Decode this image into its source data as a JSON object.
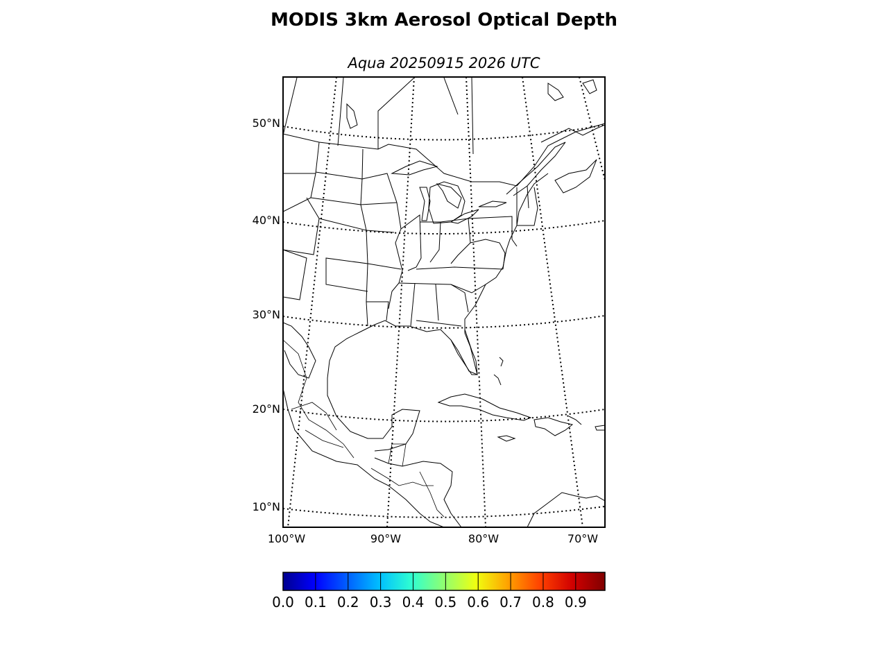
{
  "title": "MODIS 3km Aerosol Optical Depth",
  "subtitle": "Aqua 20250915 2026 UTC",
  "lat_labels": [
    {
      "text": "50°N",
      "lat": 50
    },
    {
      "text": "40°N",
      "lat": 40
    },
    {
      "text": "30°N",
      "lat": 30
    },
    {
      "text": "20°N",
      "lat": 20
    },
    {
      "text": "10°N",
      "lat": 10
    }
  ],
  "lon_labels": [
    {
      "text": "100°W",
      "lon": -100
    },
    {
      "text": "90°W",
      "lon": -90
    },
    {
      "text": "80°W",
      "lon": -80
    },
    {
      "text": "70°W",
      "lon": -70
    }
  ],
  "colorbar": {
    "colormap": "jet",
    "range": [
      0.0,
      0.99
    ],
    "ticks": [
      "0.0",
      "0.1",
      "0.2",
      "0.3",
      "0.4",
      "0.5",
      "0.6",
      "0.7",
      "0.8",
      "0.9"
    ],
    "colors": [
      "#00008f",
      "#0000ff",
      "#0060ff",
      "#00c0ff",
      "#30ffd0",
      "#90ff70",
      "#f0ff10",
      "#ffa000",
      "#ff4000",
      "#d00000",
      "#800000"
    ]
  },
  "map": {
    "projection": "lambert-conformal",
    "gridlines": "dotted",
    "lat_range": [
      8,
      55
    ],
    "lon_range": [
      -100,
      -62
    ]
  }
}
